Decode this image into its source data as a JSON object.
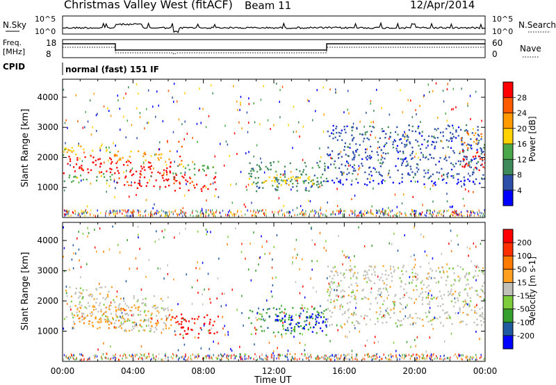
{
  "header": {
    "title": "Christmas Valley West (fitACF)",
    "beam": "Beam 11",
    "date": "12/Apr/2014"
  },
  "summary_panel": {
    "left_labels": {
      "nsky": "N.Sky",
      "freq": "Freq.",
      "freq_unit": "[MHz]",
      "cpid": "CPID"
    },
    "right_labels": {
      "nsearch": "N.Search",
      "nave": "Nave"
    },
    "noise_ticks_left": [
      "10^5",
      "10^0"
    ],
    "noise_ticks_right": [
      "10^5",
      "10^0"
    ],
    "freq_ticks": [
      "18",
      "8"
    ],
    "nave_ticks": [
      "60",
      "0"
    ],
    "cpid_text": "normal (fast) 151 IF"
  },
  "colors": {
    "power": [
      "#0000ff",
      "#2d4fa8",
      "#3f8a5a",
      "#4aa84a",
      "#ffd200",
      "#ff9a00",
      "#ff5a00",
      "#ff0000"
    ],
    "velocity": [
      "#0000ff",
      "#1f5aa0",
      "#36a02e",
      "#7ccc3c",
      "#c0c0b8",
      "#ffa020",
      "#ff7a00",
      "#ff3000",
      "#ff0000"
    ]
  },
  "chart_data": [
    {
      "type": "heatmap",
      "name": "power",
      "xlabel": "Time UT",
      "ylabel": "Slant Range [km]",
      "xlim": [
        0,
        24
      ],
      "ylim": [
        0,
        4600
      ],
      "x_ticks": [
        "00:00",
        "04:00",
        "08:00",
        "12:00",
        "16:00",
        "20:00",
        "00:00"
      ],
      "y_ticks": [
        "1000",
        "2000",
        "3000",
        "4000"
      ],
      "colorbar_label": "Power [dB]",
      "colorbar_ticks": [
        "28",
        "24",
        "20",
        "16",
        "12",
        "8",
        "4"
      ],
      "regions": [
        {
          "t0": 0.0,
          "t1": 2.9,
          "r0": 1500,
          "r1": 2100,
          "level": 7
        },
        {
          "t0": 0.0,
          "t1": 2.9,
          "r0": 2100,
          "r1": 2450,
          "level": 4
        },
        {
          "t0": 0.0,
          "t1": 2.9,
          "r0": 1200,
          "r1": 1500,
          "level": 3
        },
        {
          "t0": 2.9,
          "t1": 6.2,
          "r0": 1000,
          "r1": 1900,
          "level": 7
        },
        {
          "t0": 2.9,
          "t1": 6.2,
          "r0": 1900,
          "r1": 2250,
          "level": 5
        },
        {
          "t0": 6.2,
          "t1": 8.8,
          "r0": 900,
          "r1": 1450,
          "level": 7
        },
        {
          "t0": 6.2,
          "t1": 8.8,
          "r0": 1450,
          "r1": 1800,
          "level": 3
        },
        {
          "t0": 6.5,
          "t1": 6.8,
          "r0": 1900,
          "r1": 2550,
          "level": 6
        },
        {
          "t0": 10.5,
          "t1": 15.0,
          "r0": 900,
          "r1": 1900,
          "level": 2
        },
        {
          "t0": 10.5,
          "t1": 15.0,
          "r0": 1100,
          "r1": 1400,
          "level": 4
        },
        {
          "t0": 15.0,
          "t1": 24.0,
          "r0": 1300,
          "r1": 3100,
          "level": 1
        },
        {
          "t0": 15.0,
          "t1": 24.0,
          "r0": 1100,
          "r1": 1300,
          "level": 0
        },
        {
          "t0": 22.6,
          "t1": 24.0,
          "r0": 1600,
          "r1": 2400,
          "level": 7
        },
        {
          "t0": 22.6,
          "t1": 24.0,
          "r0": 2400,
          "r1": 2900,
          "level": 5
        }
      ]
    },
    {
      "type": "heatmap",
      "name": "velocity",
      "xlabel": "Time UT",
      "ylabel": "Slant Range [km]",
      "xlim": [
        0,
        24
      ],
      "ylim": [
        0,
        4600
      ],
      "x_ticks": [
        "00:00",
        "04:00",
        "08:00",
        "12:00",
        "16:00",
        "20:00",
        "00:00"
      ],
      "y_ticks": [
        "1000",
        "2000",
        "3000",
        "4000"
      ],
      "colorbar_label": "Velocity [m s-1]",
      "colorbar_ticks": [
        "200",
        "100",
        "50",
        "15",
        "-15",
        "-50",
        "-100",
        "-200"
      ],
      "regions": [
        {
          "t0": 0.0,
          "t1": 2.9,
          "r0": 1300,
          "r1": 2500,
          "level": 4
        },
        {
          "t0": 2.9,
          "t1": 6.2,
          "r0": 1000,
          "r1": 2200,
          "level": 4
        },
        {
          "t0": 0.5,
          "t1": 6.2,
          "r0": 1100,
          "r1": 1900,
          "level": 5
        },
        {
          "t0": 6.2,
          "t1": 8.8,
          "r0": 800,
          "r1": 1600,
          "level": 8
        },
        {
          "t0": 10.5,
          "t1": 15.0,
          "r0": 900,
          "r1": 1800,
          "level": 2
        },
        {
          "t0": 12.0,
          "t1": 15.0,
          "r0": 1000,
          "r1": 1600,
          "level": 0
        },
        {
          "t0": 15.0,
          "t1": 24.0,
          "r0": 1200,
          "r1": 3200,
          "level": 4
        }
      ]
    }
  ]
}
